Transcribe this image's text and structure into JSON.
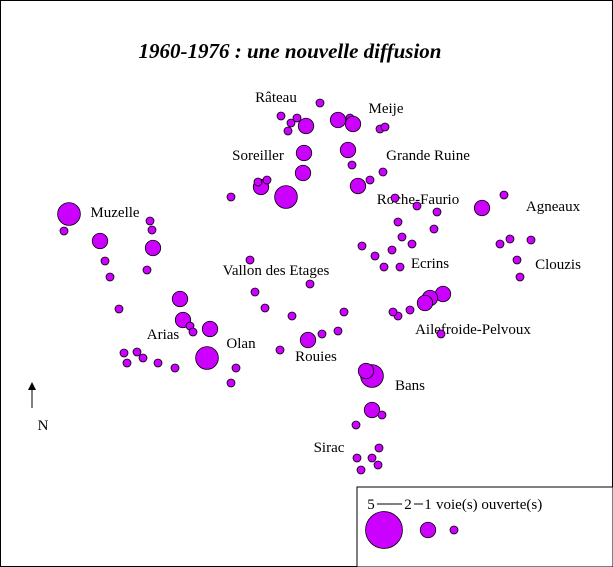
{
  "title": "1960-1976 : une nouvelle diffusion",
  "north": "N",
  "places": [
    "Râteau",
    "Meije",
    "Soreiller",
    "Grande Ruine",
    "Roche-Faurio",
    "Agneaux",
    "Muzelle",
    "Ecrins",
    "Clouzis",
    "Vallon des Etages",
    "Arias",
    "Olan",
    "Rouies",
    "Ailefroide-Pelvoux",
    "Bans",
    "Sirac"
  ],
  "legend": {
    "values": [
      5,
      2,
      1
    ],
    "unit": "voie(s) ouverte(s)"
  },
  "points": [
    3,
    1,
    2,
    2,
    1,
    1,
    1,
    1,
    1,
    1,
    2,
    2,
    1,
    1,
    2,
    3,
    1,
    1,
    1,
    1,
    1,
    1,
    1,
    1,
    1,
    1,
    1,
    1,
    1,
    2,
    1,
    1,
    1,
    1,
    3,
    2,
    2,
    1,
    1,
    1,
    1,
    1,
    1,
    1,
    1,
    1,
    1,
    1,
    1,
    2,
    2,
    1,
    2,
    1,
    1,
    2,
    2,
    2,
    1,
    2,
    1,
    1,
    3,
    2,
    1,
    1,
    1,
    1,
    1,
    1,
    1,
    2,
    1,
    1,
    1,
    1,
    1,
    1,
    1,
    1,
    1,
    2,
    2,
    2,
    1,
    1,
    1,
    1,
    1,
    1,
    1,
    1,
    1
  ],
  "color": "#cc00ff"
}
